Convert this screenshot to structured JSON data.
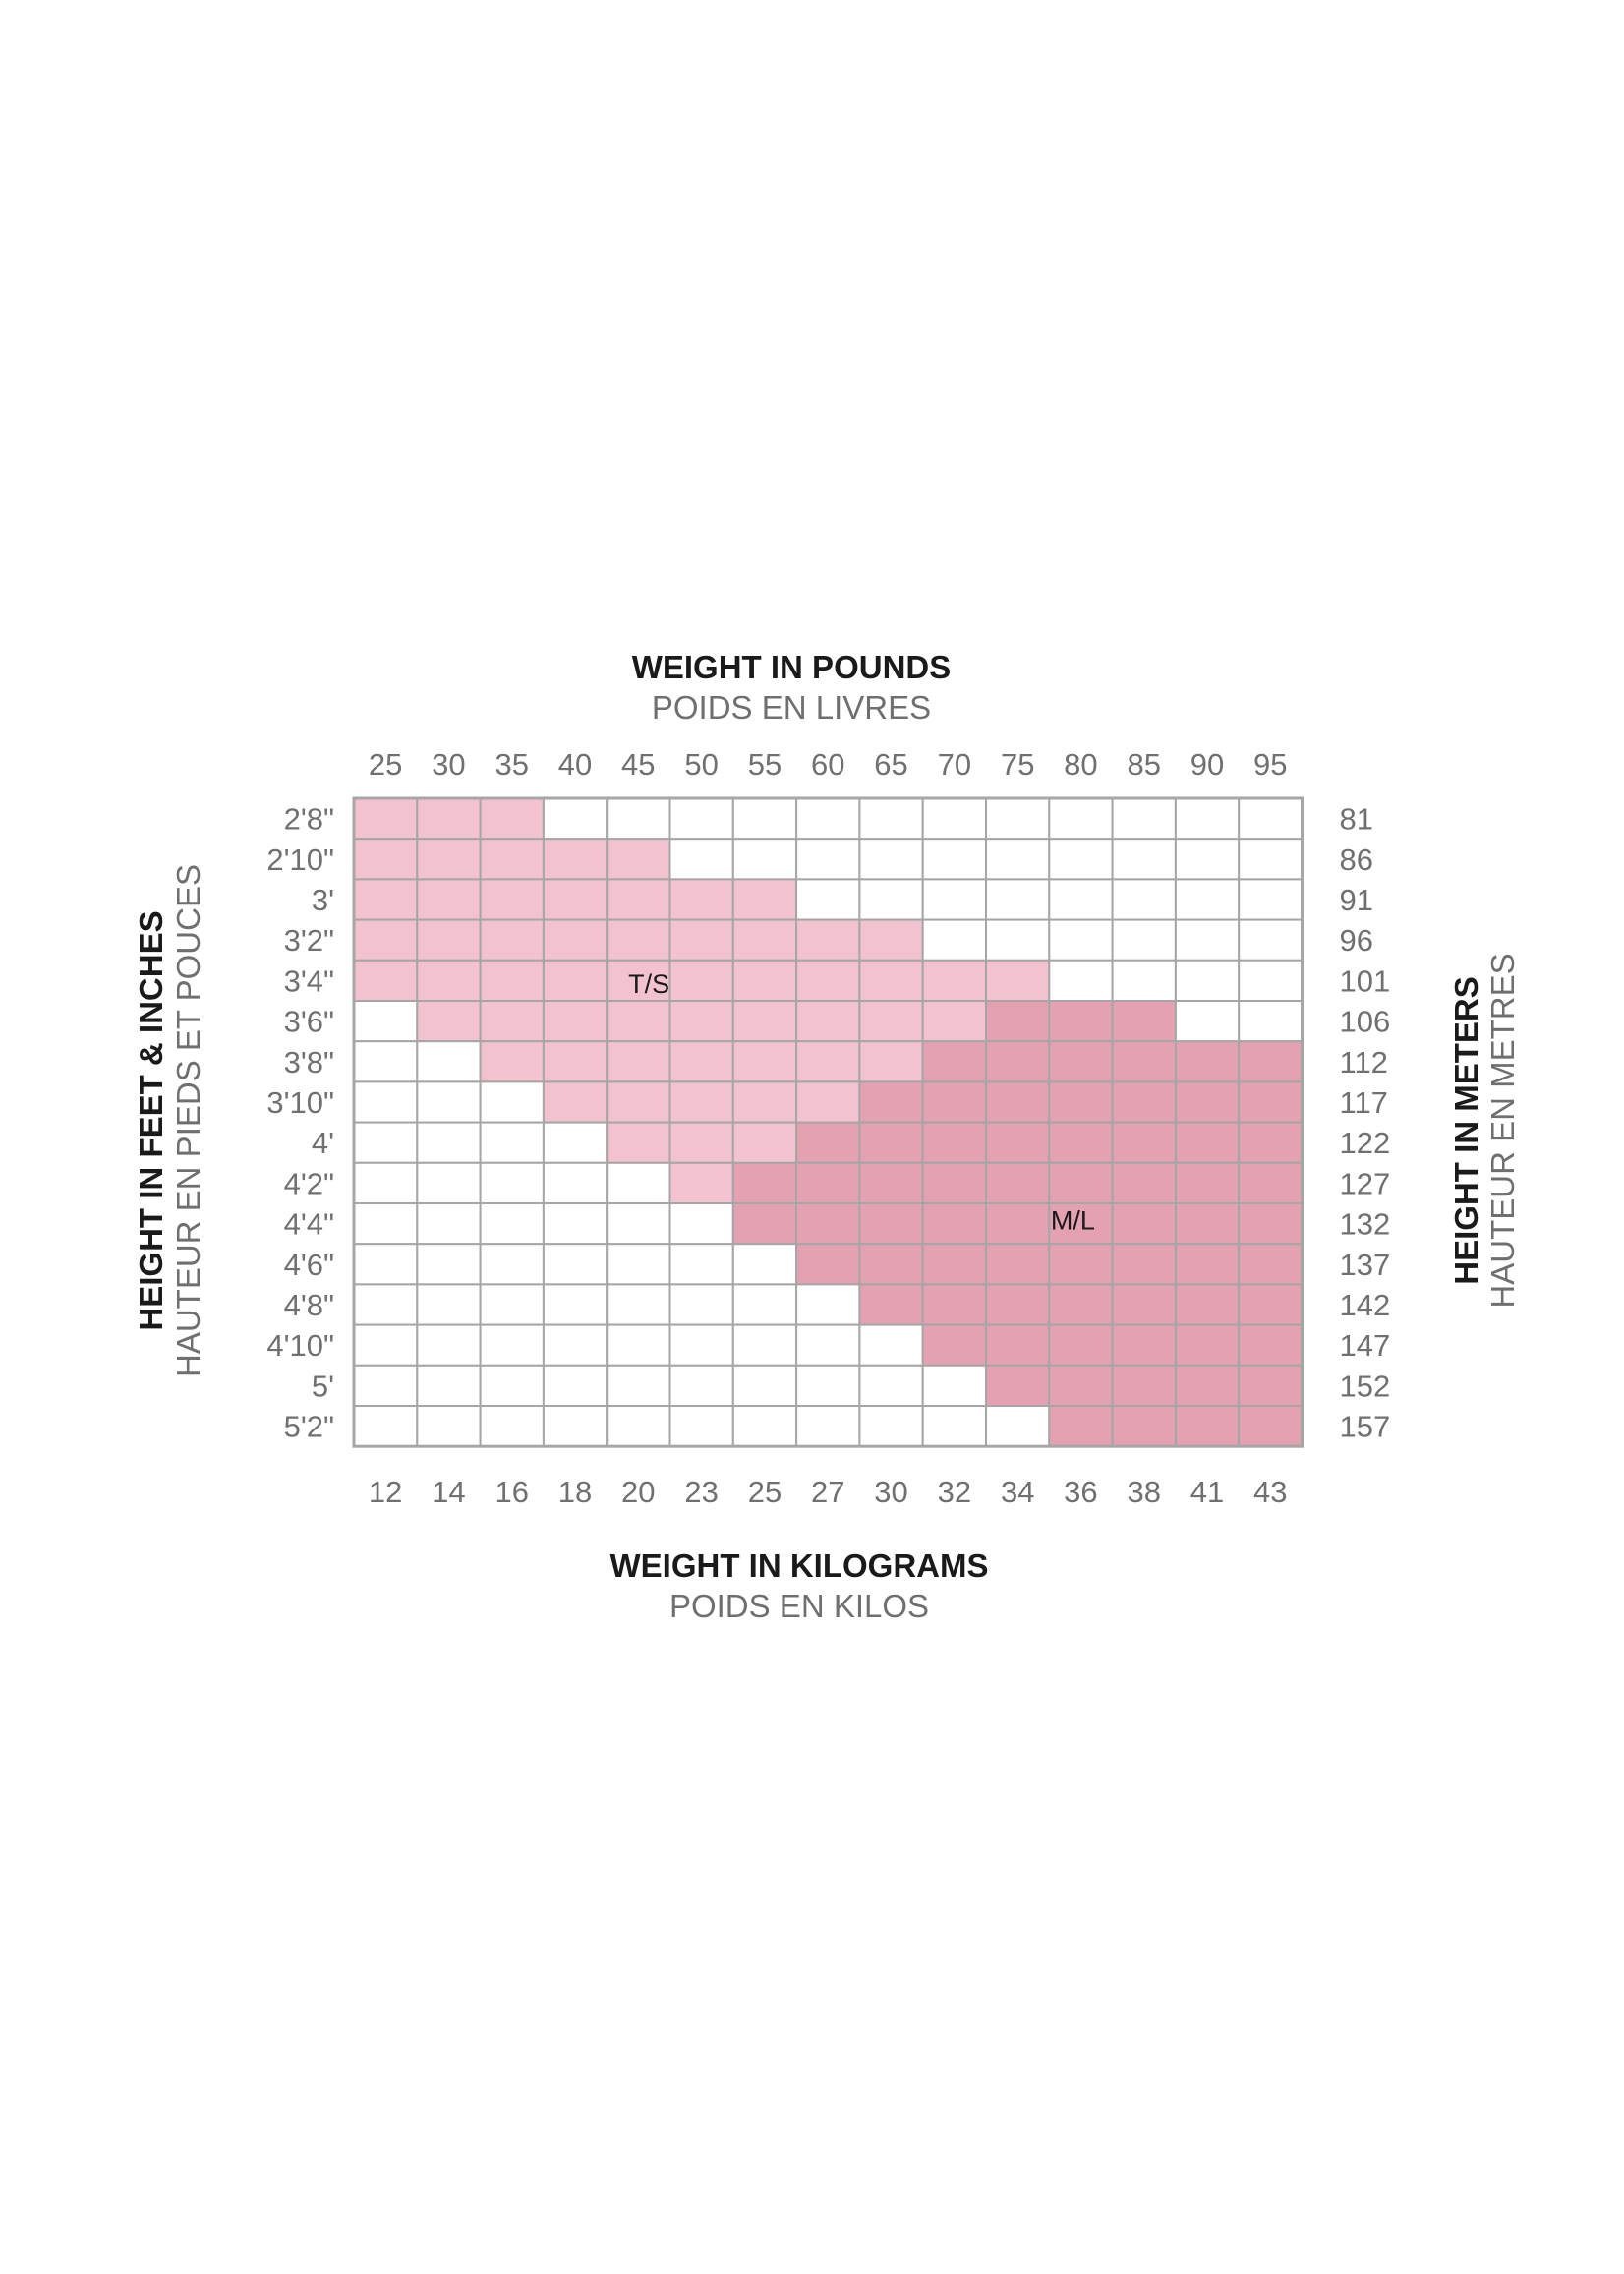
{
  "chart_data": {
    "type": "heatmap",
    "title_top": "WEIGHT IN POUNDS",
    "subtitle_top": "POIDS EN LIVRES",
    "title_bottom": "WEIGHT IN KILOGRAMS",
    "subtitle_bottom": "POIDS EN KILOS",
    "ylabel_left": "HEIGHT IN FEET & INCHES",
    "ylabel_left_sub": "HAUTEUR EN PIEDS ET POUCES",
    "ylabel_right": "HEIGHT IN METERS",
    "ylabel_right_sub": "HAUTEUR EN METRES",
    "x_pounds": [
      "25",
      "30",
      "35",
      "40",
      "45",
      "50",
      "55",
      "60",
      "65",
      "70",
      "75",
      "80",
      "85",
      "90",
      "95"
    ],
    "x_kilograms": [
      "12",
      "14",
      "16",
      "18",
      "20",
      "23",
      "25",
      "27",
      "30",
      "32",
      "34",
      "36",
      "38",
      "41",
      "43"
    ],
    "y_feet_inches": [
      "2'8\"",
      "2'10\"",
      "3'",
      "3'2\"",
      "3'4\"",
      "3'6\"",
      "3'8\"",
      "3'10\"",
      "4'",
      "4'2\"",
      "4'4\"",
      "4'6\"",
      "4'8\"",
      "4'10\"",
      "5'",
      "5'2\""
    ],
    "y_meters": [
      "81",
      "86",
      "91",
      "96",
      "101",
      "106",
      "112",
      "117",
      "122",
      "127",
      "132",
      "137",
      "142",
      "147",
      "152",
      "157"
    ],
    "sizes": [
      {
        "label": "T/S",
        "color": "#f2c3cf",
        "column_range_by_row": [
          [
            0,
            2
          ],
          [
            0,
            4
          ],
          [
            0,
            6
          ],
          [
            0,
            8
          ],
          [
            0,
            10
          ],
          [
            1,
            9
          ],
          [
            2,
            8
          ],
          [
            3,
            7
          ],
          [
            4,
            6
          ],
          [
            5,
            5
          ],
          null,
          null,
          null,
          null,
          null,
          null
        ]
      },
      {
        "label": "M/L",
        "color": "#e4a1b2",
        "column_range_by_row": [
          null,
          null,
          null,
          null,
          null,
          [
            10,
            12
          ],
          [
            9,
            14
          ],
          [
            8,
            14
          ],
          [
            7,
            14
          ],
          [
            6,
            14
          ],
          [
            6,
            14
          ],
          [
            7,
            14
          ],
          [
            8,
            14
          ],
          [
            9,
            14
          ],
          [
            10,
            14
          ],
          [
            11,
            14
          ]
        ]
      }
    ],
    "empty_color": "#ffffff",
    "grid_color": "#a6a6a6"
  }
}
